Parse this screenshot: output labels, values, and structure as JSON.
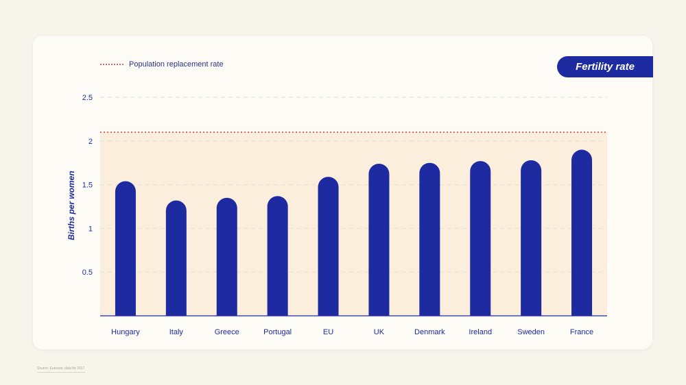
{
  "badge": {
    "label": "Fertility rate"
  },
  "legend": {
    "label": "Population replacement rate"
  },
  "footnote": "Source: Eurostat, data for 2017",
  "colors": {
    "bar": "#1e2aa0",
    "replacement_line": "#e0646b",
    "shaded_area": "#fbeedd",
    "axis": "#1e2aa0",
    "grid": "#e3ded4"
  },
  "chart_data": {
    "type": "bar",
    "title": "Fertility rate",
    "xlabel": "",
    "ylabel": "Births per women",
    "ylim": [
      0,
      2.5
    ],
    "yticks": [
      0.5,
      1,
      1.5,
      2,
      2.5
    ],
    "grid": true,
    "legend_position": "top-left",
    "categories": [
      "Hungary",
      "Italy",
      "Greece",
      "Portugal",
      "EU",
      "UK",
      "Denmark",
      "Ireland",
      "Sweden",
      "France"
    ],
    "values": [
      1.54,
      1.32,
      1.35,
      1.37,
      1.59,
      1.74,
      1.75,
      1.77,
      1.78,
      1.9
    ],
    "reference_line": {
      "name": "Population replacement rate",
      "value": 2.1
    }
  }
}
